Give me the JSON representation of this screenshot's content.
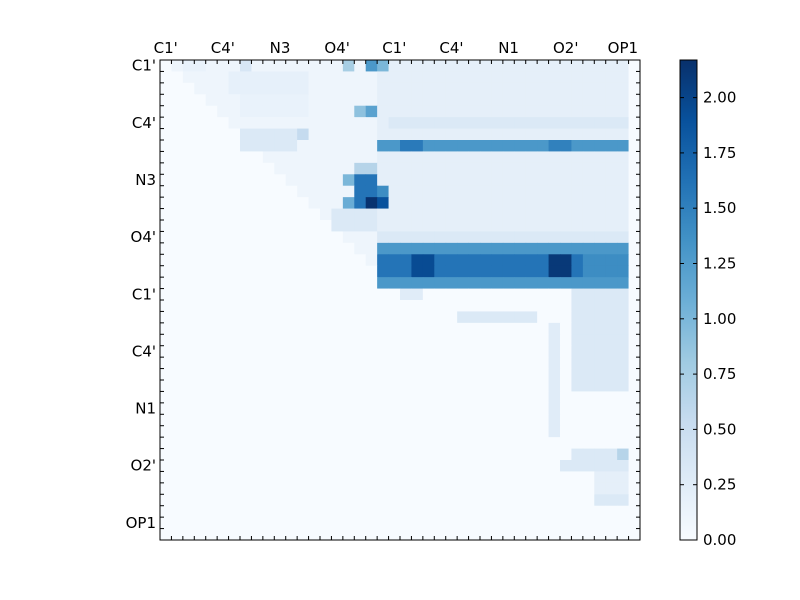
{
  "chart_data": {
    "type": "heatmap",
    "title": "",
    "xlabel": "",
    "ylabel": "",
    "x_tick_labels": [
      "C1'",
      "C4'",
      "N3",
      "O4'",
      "C1'",
      "C4'",
      "N1",
      "O2'",
      "OP1"
    ],
    "y_tick_labels": [
      "C1'",
      "C4'",
      "N3",
      "O4'",
      "C1'",
      "C4'",
      "N1",
      "O2'",
      "OP1"
    ],
    "matrix_size": 42,
    "colormap": "Blues",
    "colorbar": {
      "min": 0.0,
      "max": 2.17,
      "ticks": [
        0.0,
        0.25,
        0.5,
        0.75,
        1.0,
        1.25,
        1.5,
        1.75,
        2.0
      ],
      "tick_labels": [
        "0.00",
        "0.25",
        "0.50",
        "0.75",
        "1.00",
        "1.25",
        "1.50",
        "1.75",
        "2.00"
      ]
    },
    "blocks": [
      {
        "rows": [
          0,
          19
        ],
        "cols": [
          0,
          41
        ],
        "upper_only": true,
        "value": 0.1
      },
      {
        "rows": [
          0,
          19
        ],
        "cols": [
          19,
          41
        ],
        "value": 0.2
      },
      {
        "rows": [
          0,
          1
        ],
        "cols": [
          16,
          17
        ],
        "value": 0.75
      },
      {
        "rows": [
          0,
          1
        ],
        "cols": [
          18,
          19
        ],
        "value": 1.3
      },
      {
        "rows": [
          0,
          1
        ],
        "cols": [
          19,
          20
        ],
        "value": 1.0
      },
      {
        "rows": [
          0,
          1
        ],
        "cols": [
          7,
          8
        ],
        "value": 0.35
      },
      {
        "rows": [
          0,
          1
        ],
        "cols": [
          2,
          4
        ],
        "value": 0.15
      },
      {
        "rows": [
          1,
          3
        ],
        "cols": [
          6,
          13
        ],
        "value": 0.18
      },
      {
        "rows": [
          3,
          5
        ],
        "cols": [
          7,
          13
        ],
        "value": 0.15
      },
      {
        "rows": [
          4,
          5
        ],
        "cols": [
          17,
          19
        ],
        "value": 0.9
      },
      {
        "rows": [
          4,
          5
        ],
        "cols": [
          18,
          19
        ],
        "value": 1.2
      },
      {
        "rows": [
          5,
          6
        ],
        "cols": [
          20,
          41
        ],
        "value": 0.3
      },
      {
        "rows": [
          6,
          8
        ],
        "cols": [
          7,
          12
        ],
        "value": 0.3
      },
      {
        "rows": [
          6,
          7
        ],
        "cols": [
          12,
          13
        ],
        "value": 0.55
      },
      {
        "rows": [
          7,
          8
        ],
        "cols": [
          19,
          41
        ],
        "value": 1.3
      },
      {
        "rows": [
          7,
          8
        ],
        "cols": [
          21,
          23
        ],
        "value": 1.55
      },
      {
        "rows": [
          7,
          8
        ],
        "cols": [
          34,
          36
        ],
        "value": 1.5
      },
      {
        "rows": [
          9,
          10
        ],
        "cols": [
          17,
          19
        ],
        "value": 0.65
      },
      {
        "rows": [
          10,
          11
        ],
        "cols": [
          16,
          19
        ],
        "value": 1.0
      },
      {
        "rows": [
          10,
          12
        ],
        "cols": [
          17,
          19
        ],
        "value": 1.6
      },
      {
        "rows": [
          11,
          12
        ],
        "cols": [
          19,
          20
        ],
        "value": 1.4
      },
      {
        "rows": [
          12,
          13
        ],
        "cols": [
          16,
          17
        ],
        "value": 1.1
      },
      {
        "rows": [
          12,
          13
        ],
        "cols": [
          17,
          18
        ],
        "value": 1.6
      },
      {
        "rows": [
          12,
          13
        ],
        "cols": [
          18,
          19
        ],
        "value": 2.15
      },
      {
        "rows": [
          12,
          13
        ],
        "cols": [
          19,
          20
        ],
        "value": 1.9
      },
      {
        "rows": [
          13,
          15
        ],
        "cols": [
          15,
          19
        ],
        "value": 0.3
      },
      {
        "rows": [
          15,
          16
        ],
        "cols": [
          19,
          41
        ],
        "value": 0.3
      },
      {
        "rows": [
          16,
          20
        ],
        "cols": [
          19,
          41
        ],
        "value": 1.3
      },
      {
        "rows": [
          17,
          19
        ],
        "cols": [
          19,
          41
        ],
        "value": 1.6
      },
      {
        "rows": [
          17,
          19
        ],
        "cols": [
          22,
          24
        ],
        "value": 1.95
      },
      {
        "rows": [
          17,
          19
        ],
        "cols": [
          34,
          36
        ],
        "value": 2.1
      },
      {
        "rows": [
          17,
          19
        ],
        "cols": [
          37,
          41
        ],
        "value": 1.4
      },
      {
        "rows": [
          20,
          21
        ],
        "cols": [
          21,
          23
        ],
        "value": 0.25
      },
      {
        "rows": [
          20,
          29
        ],
        "cols": [
          36,
          41
        ],
        "value": 0.3
      },
      {
        "rows": [
          22,
          23
        ],
        "cols": [
          26,
          33
        ],
        "value": 0.3
      },
      {
        "rows": [
          23,
          33
        ],
        "cols": [
          34,
          35
        ],
        "value": 0.25
      },
      {
        "rows": [
          34,
          35
        ],
        "cols": [
          36,
          41
        ],
        "value": 0.3
      },
      {
        "rows": [
          34,
          35
        ],
        "cols": [
          40,
          41
        ],
        "value": 0.65
      },
      {
        "rows": [
          35,
          36
        ],
        "cols": [
          35,
          41
        ],
        "value": 0.3
      },
      {
        "rows": [
          36,
          38
        ],
        "cols": [
          38,
          41
        ],
        "value": 0.2
      },
      {
        "rows": [
          38,
          39
        ],
        "cols": [
          38,
          41
        ],
        "value": 0.3
      }
    ]
  }
}
